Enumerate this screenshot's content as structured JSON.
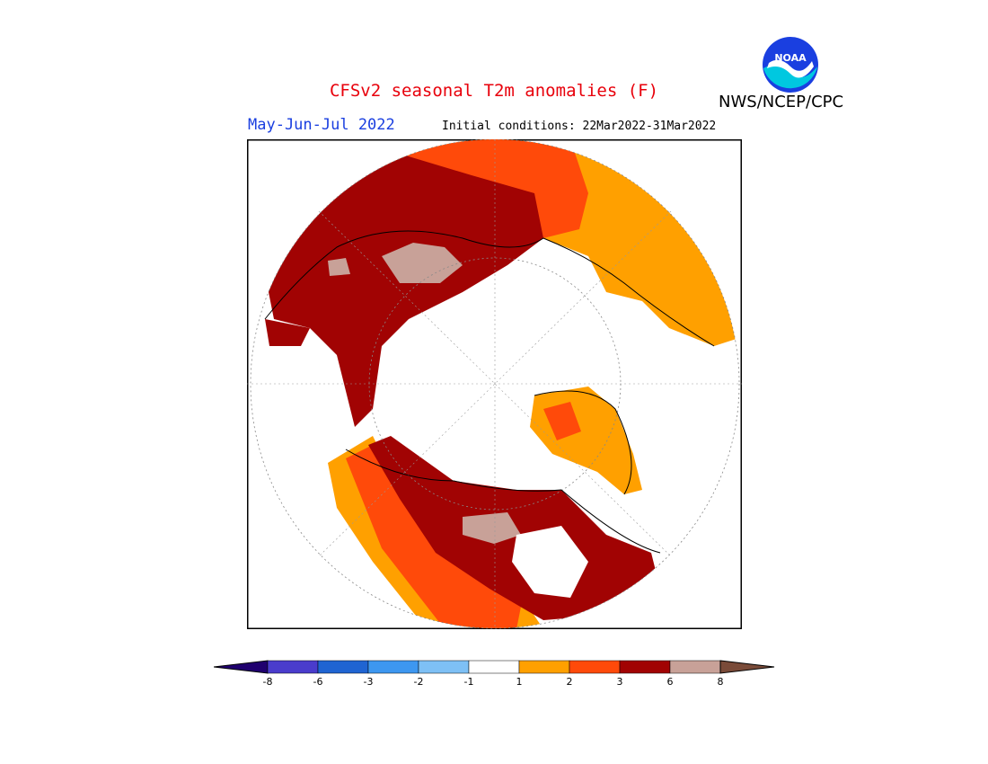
{
  "title": "CFSv2 seasonal T2m anomalies (F)",
  "agency": "NWS/NCEP/CPC",
  "logo_text": "NOAA",
  "season": "May-Jun-Jul 2022",
  "initial_conditions": "Initial conditions: 22Mar2022-31Mar2022",
  "legend": {
    "ticks": [
      "-8",
      "-6",
      "-3",
      "-2",
      "-1",
      "1",
      "2",
      "3",
      "6",
      "8"
    ],
    "colors": [
      "#20006f",
      "#4a3ccc",
      "#1f64d2",
      "#3d97f0",
      "#7ec0f5",
      "#ffffff",
      "#ffa000",
      "#ff4a0a",
      "#a10303",
      "#c8a198",
      "#7a4b39"
    ]
  },
  "anomaly_colors": {
    "1_to_2": "#ffa000",
    "2_to_3": "#ff4a0a",
    "3_to_6": "#a10303",
    "6_to_8": "#c8a198"
  }
}
